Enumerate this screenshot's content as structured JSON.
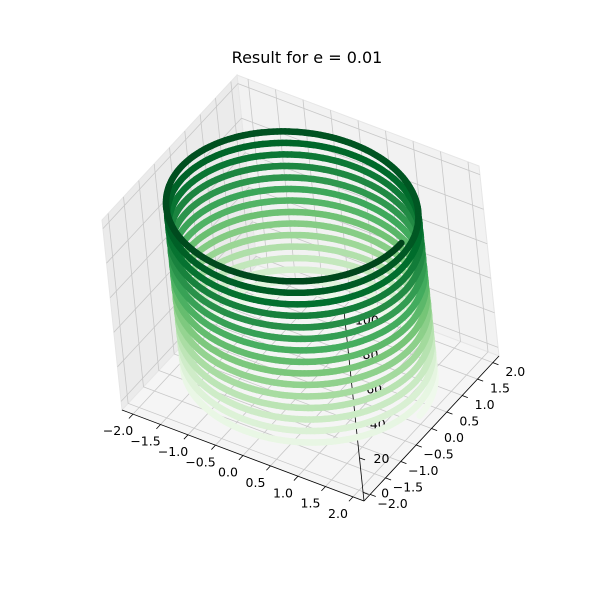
{
  "chart_data": {
    "type": "line",
    "projection": "3d",
    "title": "Result for e = 0.01",
    "xlabel": "",
    "ylabel": "",
    "zlabel": "",
    "xlim": [
      -2.2,
      2.2
    ],
    "ylim": [
      -2.2,
      2.2
    ],
    "zlim": [
      -5,
      105
    ],
    "x_ticks": [
      "−2.0",
      "−1.5",
      "−1.0",
      "−0.5",
      "0.0",
      "0.5",
      "1.0",
      "1.5",
      "2.0"
    ],
    "y_ticks": [
      "−2.0",
      "−1.5",
      "−1.0",
      "−0.5",
      "0.0",
      "0.5",
      "1.0",
      "1.5",
      "2.0"
    ],
    "z_ticks": [
      "0",
      "20",
      "40",
      "60",
      "80",
      "100"
    ],
    "grid": true,
    "colormap": "Greens",
    "colormap_stops": [
      "#f7fcf5",
      "#e5f5e0",
      "#c7e9c0",
      "#a1d99b",
      "#74c476",
      "#41ab5d",
      "#238b45",
      "#006d2c",
      "#00441b"
    ],
    "series": [
      {
        "curve": "helix",
        "radius": 2.0,
        "z_start": 0,
        "z_end": 100,
        "turns": 15,
        "color_by": "z"
      }
    ]
  }
}
